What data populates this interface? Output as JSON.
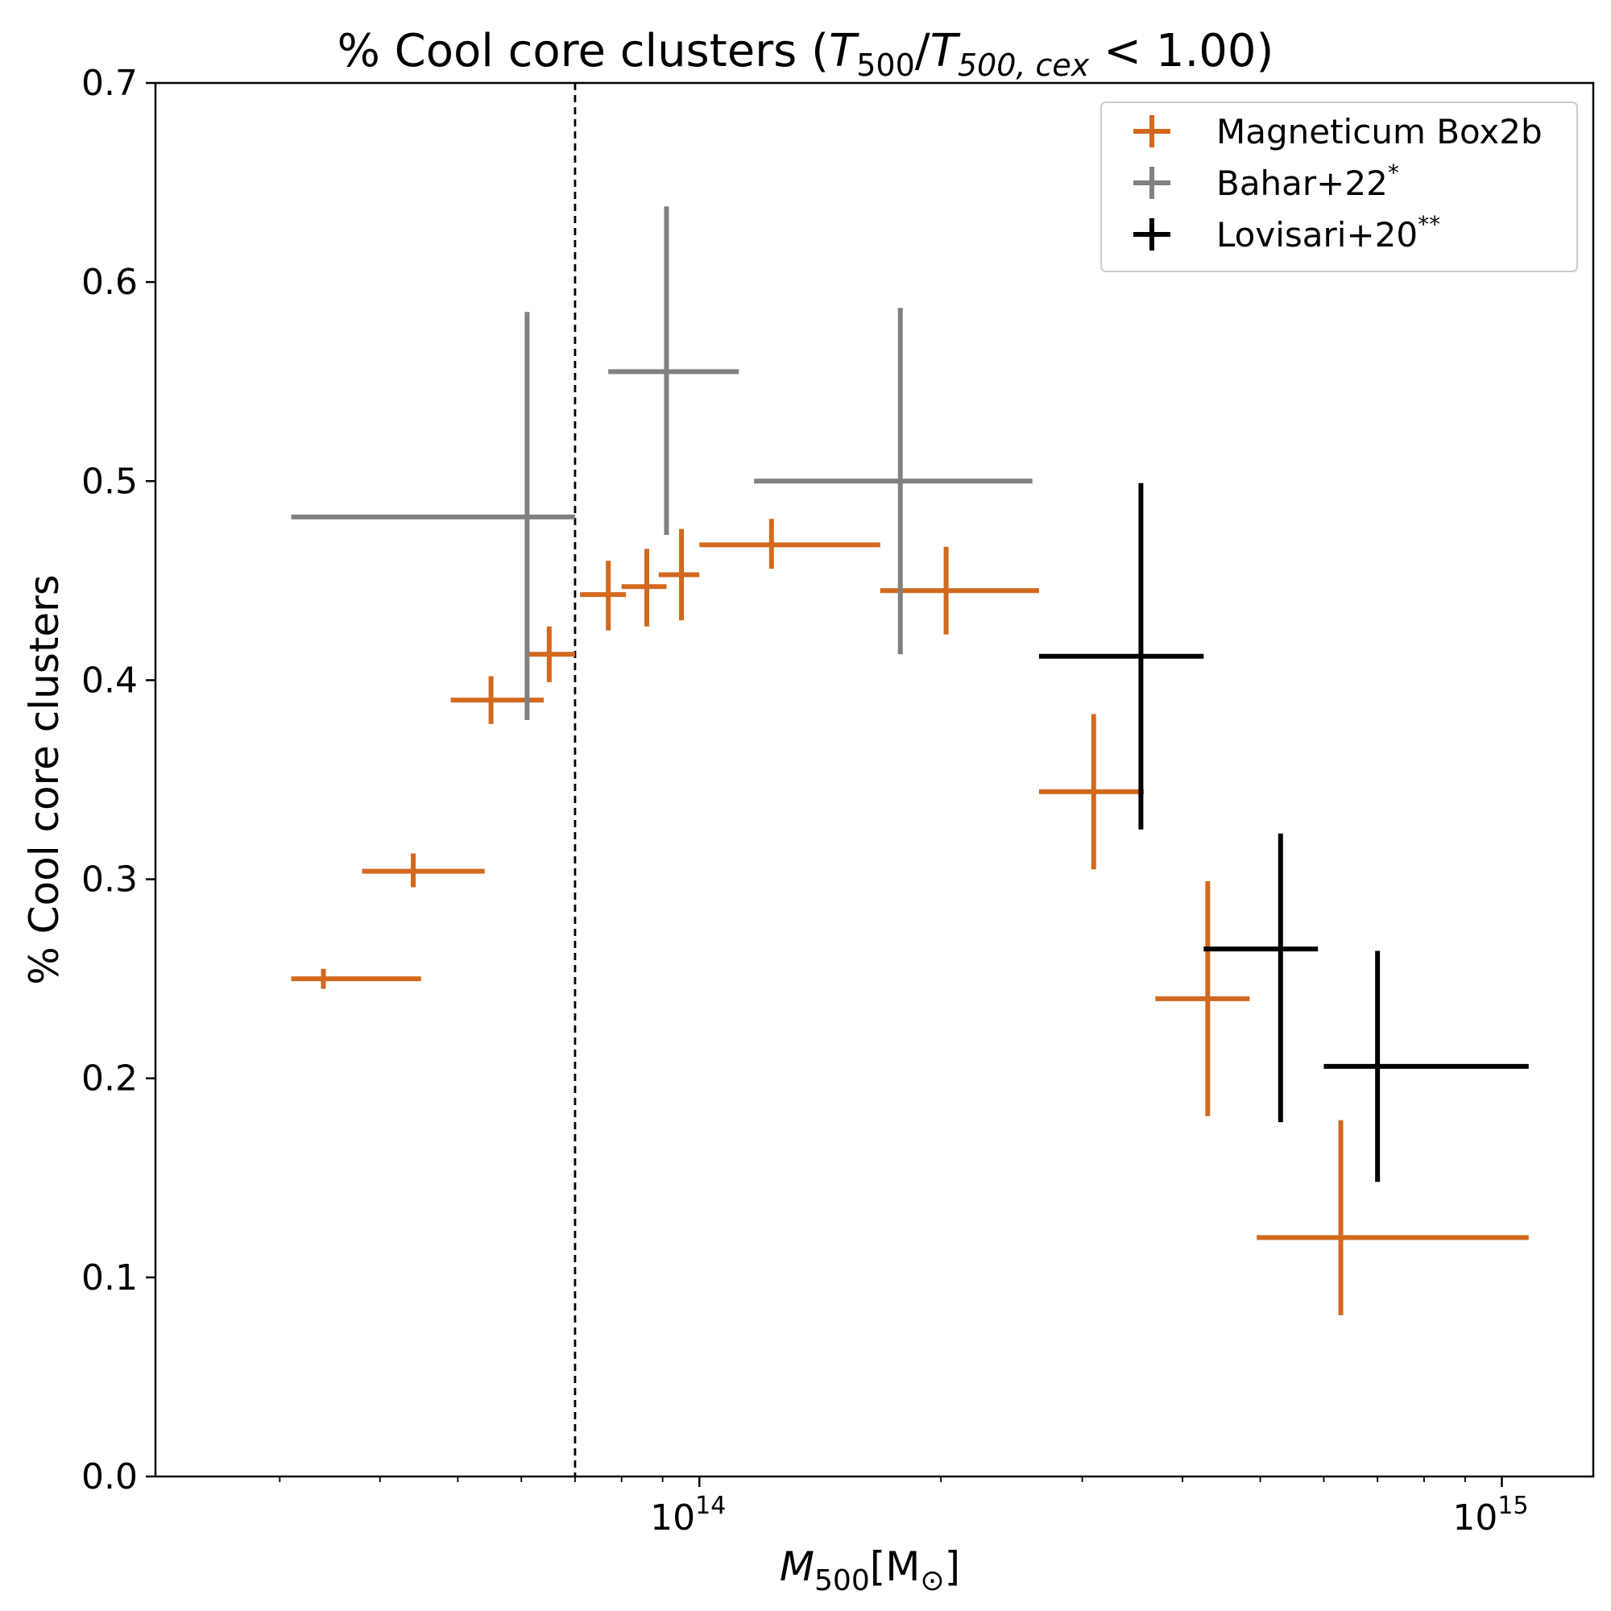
{
  "chart_data": {
    "type": "scatter",
    "title": "% Cool core clusters (T500/T500,cex < 1.00)",
    "title_parts": {
      "prefix": "% Cool core clusters (",
      "t": "T",
      "sub1": "500",
      "slash": "/",
      "sub2": "500, cex",
      "suffix": " < 1.00)"
    },
    "xlabel": "M500[M⊙]",
    "xlabel_parts": {
      "m": "M",
      "sub": "500",
      "rest": "[M",
      "sub2": "⊙",
      "close": "]"
    },
    "ylabel": "% Cool core clusters",
    "xscale": "log",
    "xlim": [
      21000000000000,
      1300000000000000
    ],
    "ylim": [
      0.0,
      0.7
    ],
    "yticks": [
      0.0,
      0.1,
      0.2,
      0.3,
      0.4,
      0.5,
      0.6,
      0.7
    ],
    "ytick_labels": [
      "0.0",
      "0.1",
      "0.2",
      "0.3",
      "0.4",
      "0.5",
      "0.6",
      "0.7"
    ],
    "xtick_major": [
      {
        "value": 100000000000000,
        "base": "10",
        "exp": "14"
      },
      {
        "value": 1000000000000000,
        "base": "10",
        "exp": "15"
      }
    ],
    "vline": {
      "x": 70000000000000,
      "style": "dashed"
    },
    "legend_position": "top-right",
    "series": [
      {
        "name": "Magneticum Box2b",
        "color": "#d2691e",
        "points": [
          {
            "x": 34000000000000,
            "y": 0.25,
            "xlo": 31000000000000,
            "xhi": 45000000000000,
            "ylo": 0.245,
            "yhi": 0.255
          },
          {
            "x": 44000000000000,
            "y": 0.304,
            "xlo": 38000000000000,
            "xhi": 54000000000000,
            "ylo": 0.296,
            "yhi": 0.313
          },
          {
            "x": 55000000000000,
            "y": 0.39,
            "xlo": 49000000000000,
            "xhi": 64000000000000,
            "ylo": 0.378,
            "yhi": 0.402
          },
          {
            "x": 65000000000000,
            "y": 0.413,
            "xlo": 61000000000000,
            "xhi": 70000000000000,
            "ylo": 0.399,
            "yhi": 0.427
          },
          {
            "x": 77000000000000,
            "y": 0.443,
            "xlo": 71000000000000,
            "xhi": 81000000000000,
            "ylo": 0.425,
            "yhi": 0.46
          },
          {
            "x": 86000000000000,
            "y": 0.447,
            "xlo": 80000000000000,
            "xhi": 91000000000000,
            "ylo": 0.427,
            "yhi": 0.466
          },
          {
            "x": 95000000000000,
            "y": 0.453,
            "xlo": 89000000000000,
            "xhi": 100000000000000,
            "ylo": 0.43,
            "yhi": 0.476
          },
          {
            "x": 123000000000000,
            "y": 0.468,
            "xlo": 100000000000000,
            "xhi": 168000000000000,
            "ylo": 0.456,
            "yhi": 0.481
          },
          {
            "x": 203000000000000,
            "y": 0.445,
            "xlo": 168000000000000,
            "xhi": 265000000000000,
            "ylo": 0.423,
            "yhi": 0.467
          },
          {
            "x": 310000000000000,
            "y": 0.344,
            "xlo": 265000000000000,
            "xhi": 358000000000000,
            "ylo": 0.305,
            "yhi": 0.383
          },
          {
            "x": 430000000000000,
            "y": 0.24,
            "xlo": 370000000000000,
            "xhi": 485000000000000,
            "ylo": 0.181,
            "yhi": 0.299
          },
          {
            "x": 630000000000000,
            "y": 0.12,
            "xlo": 495000000000000,
            "xhi": 1080000000000000,
            "ylo": 0.081,
            "yhi": 0.179
          }
        ]
      },
      {
        "name": "Bahar+22",
        "name_sup": "*",
        "color": "#808080",
        "points": [
          {
            "x": 61000000000000,
            "y": 0.482,
            "xlo": 31000000000000,
            "xhi": 70000000000000,
            "ylo": 0.38,
            "yhi": 0.585
          },
          {
            "x": 91000000000000,
            "y": 0.555,
            "xlo": 77000000000000,
            "xhi": 112000000000000,
            "ylo": 0.473,
            "yhi": 0.638
          },
          {
            "x": 178000000000000,
            "y": 0.5,
            "xlo": 117000000000000,
            "xhi": 260000000000000,
            "ylo": 0.413,
            "yhi": 0.587
          }
        ]
      },
      {
        "name": "Lovisari+20",
        "name_sup": "**",
        "color": "#000000",
        "points": [
          {
            "x": 355000000000000,
            "y": 0.412,
            "xlo": 265000000000000,
            "xhi": 425000000000000,
            "ylo": 0.325,
            "yhi": 0.499
          },
          {
            "x": 530000000000000,
            "y": 0.265,
            "xlo": 425000000000000,
            "xhi": 590000000000000,
            "ylo": 0.178,
            "yhi": 0.323
          },
          {
            "x": 700000000000000,
            "y": 0.206,
            "xlo": 600000000000000,
            "xhi": 1080000000000000,
            "ylo": 0.148,
            "yhi": 0.264
          }
        ]
      }
    ]
  }
}
